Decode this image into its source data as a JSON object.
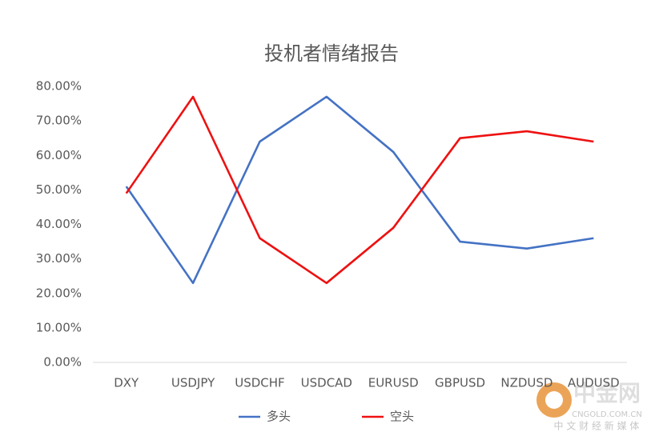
{
  "chart_data": {
    "type": "line",
    "title": "投机者情绪报告",
    "categories": [
      "DXY",
      "USDJPY",
      "USDCHF",
      "USDCAD",
      "EURUSD",
      "GBPUSD",
      "NZDUSD",
      "AUDUSD"
    ],
    "series": [
      {
        "name": "多头",
        "color": "#4472c4",
        "values": [
          51,
          23,
          64,
          77,
          61,
          35,
          33,
          36
        ]
      },
      {
        "name": "空头",
        "color": "#ee1111",
        "values": [
          49,
          77,
          36,
          23,
          39,
          65,
          67,
          64
        ]
      }
    ],
    "ylim": [
      0,
      80
    ],
    "yticks": [
      {
        "value": 0,
        "label": "0.00%"
      },
      {
        "value": 10,
        "label": "10.00%"
      },
      {
        "value": 20,
        "label": "20.00%"
      },
      {
        "value": 30,
        "label": "30.00%"
      },
      {
        "value": 40,
        "label": "40.00%"
      },
      {
        "value": 50,
        "label": "50.00%"
      },
      {
        "value": 60,
        "label": "60.00%"
      },
      {
        "value": 70,
        "label": "70.00%"
      },
      {
        "value": 80,
        "label": "80.00%"
      }
    ],
    "grid": false,
    "legend": "bottom"
  },
  "watermark": {
    "brand": "中金网",
    "domain": "CNGOLD.COM.CN",
    "slogan": "中 文 财 经 新 媒 体"
  }
}
